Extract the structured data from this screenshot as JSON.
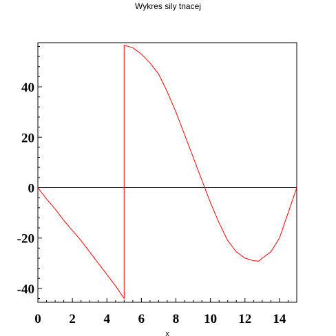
{
  "chart_data": {
    "type": "line",
    "title": "Wykres sily tnacej",
    "xlabel": "x",
    "ylabel": "",
    "xlim": [
      0,
      15
    ],
    "ylim": [
      -45.5,
      57.5
    ],
    "xticks": [
      0,
      2,
      4,
      6,
      8,
      10,
      12,
      14
    ],
    "yticks": [
      -40,
      -20,
      0,
      20,
      40
    ],
    "xtick_labels": [
      "0",
      "2",
      "4",
      "6",
      "8",
      "10",
      "12",
      "14"
    ],
    "ytick_labels": [
      "-40",
      "-20",
      "0",
      "20",
      "40"
    ],
    "grid": false,
    "line_color": "#ff0000",
    "axis_color": "#000000",
    "series": [
      {
        "x": [
          0,
          0.5,
          1,
          1.5,
          2,
          2.5,
          3,
          3.5,
          4,
          4.5,
          5,
          5,
          5.5,
          6,
          6.5,
          7,
          7.5,
          8,
          8.5,
          9,
          9.5,
          10,
          10.5,
          11,
          11.5,
          12,
          12.5,
          12.8,
          13,
          13.5,
          14,
          14.5,
          15
        ],
        "y": [
          0,
          -4.5,
          -8.5,
          -13,
          -17,
          -21,
          -25.5,
          -30,
          -34.5,
          -39,
          -44,
          56.5,
          55.5,
          53,
          49.5,
          45,
          38,
          30,
          21,
          12,
          3,
          -6,
          -14,
          -21,
          -25.5,
          -28,
          -29,
          -29.2,
          -28,
          -25.5,
          -20,
          -10,
          0
        ]
      }
    ]
  }
}
